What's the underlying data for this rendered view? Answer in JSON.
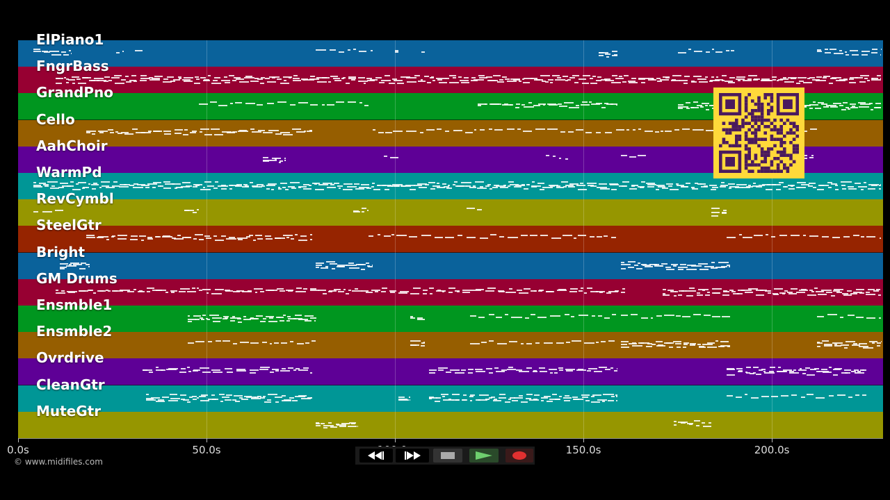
{
  "tracks": [
    {
      "name": "ElPiano1",
      "color": "#0a629b"
    },
    {
      "name": "FngrBass",
      "color": "#970032"
    },
    {
      "name": "GrandPno",
      "color": "#00961f"
    },
    {
      "name": "Cello",
      "color": "#965e00"
    },
    {
      "name": "AahChoir",
      "color": "#5e0096"
    },
    {
      "name": "WarmPd",
      "color": "#009696"
    },
    {
      "name": "RevCymbl",
      "color": "#969600"
    },
    {
      "name": "SteelGtr",
      "color": "#962400"
    },
    {
      "name": "Bright",
      "color": "#0a629b"
    },
    {
      "name": "GM Drums",
      "color": "#970032"
    },
    {
      "name": "Ensmble1",
      "color": "#00961f"
    },
    {
      "name": "Ensmble2",
      "color": "#965e00"
    },
    {
      "name": "Ovrdrive",
      "color": "#5e0096"
    },
    {
      "name": "CleanGtr",
      "color": "#009696"
    },
    {
      "name": "MuteGtr",
      "color": "#969600"
    }
  ],
  "timeline": {
    "start_s": 0,
    "end_s": 229.5,
    "ticks": [
      {
        "value": 0,
        "label": "0.0s"
      },
      {
        "value": 50,
        "label": "50.0s"
      },
      {
        "value": 100,
        "label": "100.0s"
      },
      {
        "value": 150,
        "label": "150.0s"
      },
      {
        "value": 200,
        "label": "200.0s"
      }
    ]
  },
  "copyright": "© www.midifiles.com",
  "transport": {
    "rewind_icon": "rewind-icon",
    "fast_forward_icon": "fast-forward-icon",
    "stop_icon": "stop-icon",
    "play_icon": "play-icon",
    "record_icon": "record-icon",
    "play_color": "#6ecf6e",
    "record_color": "#e03030"
  },
  "overlay": {
    "qr_color": "#ffd93a",
    "qr_module_color": "#4a1a5e"
  }
}
